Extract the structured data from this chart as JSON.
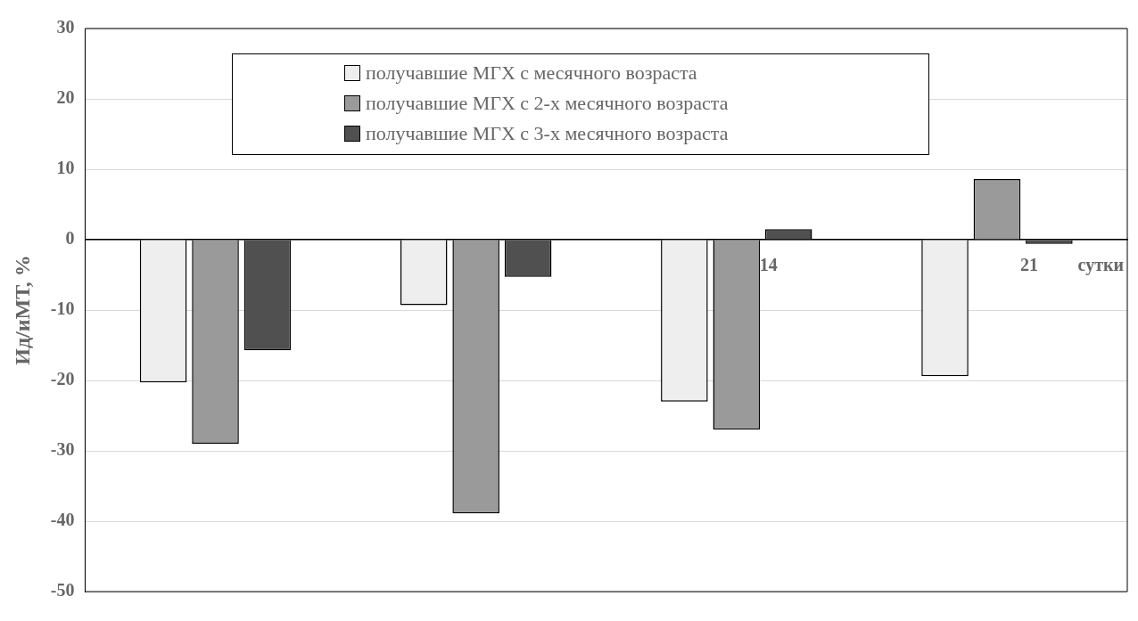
{
  "chart_data": {
    "type": "bar",
    "xlabel": "сутки",
    "ylabel": "Ид/иМТ, %",
    "categories": [
      null,
      null,
      "14",
      "21"
    ],
    "series": [
      {
        "name": "получавшие МГХ с месячного возраста",
        "color": "#eeeeee",
        "values": [
          -20.3,
          -9.3,
          -23,
          -19.4
        ]
      },
      {
        "name": "получавшие МГХ с 2-х месячного возраста",
        "color": "#9a9a9a",
        "values": [
          -29,
          -38.9,
          -27,
          8.6
        ]
      },
      {
        "name": "получавшие МГХ с 3-х месячного возраста",
        "color": "#505050",
        "values": [
          -15.7,
          -5.3,
          1.5,
          -0.6
        ]
      }
    ],
    "ylim": [
      -50,
      30
    ],
    "yticks": [
      -50,
      -40,
      -30,
      -20,
      -10,
      0,
      10,
      20,
      30
    ],
    "grid": "y",
    "legend": "top"
  }
}
